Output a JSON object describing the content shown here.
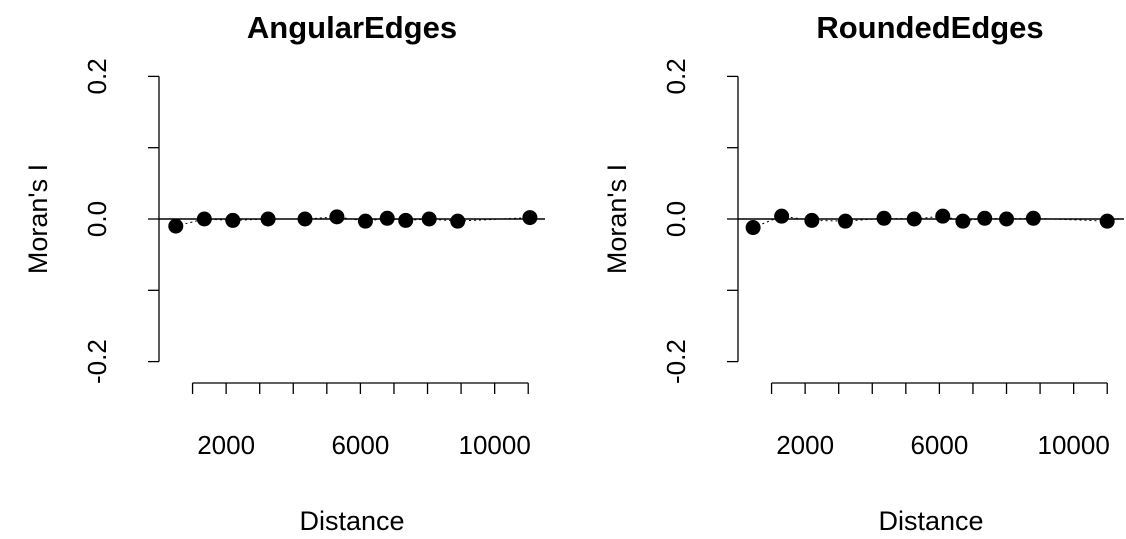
{
  "chart_data": [
    {
      "type": "scatter",
      "title": "AngularEdges",
      "xlabel": "Distance",
      "ylabel": "Moran's I",
      "xlim": [
        0,
        11500
      ],
      "ylim": [
        -0.23,
        0.23
      ],
      "xticks": [
        1000,
        2000,
        3000,
        4000,
        5000,
        6000,
        7000,
        8000,
        9000,
        10000,
        11000
      ],
      "xtick_labels": [
        "2000",
        "6000",
        "10000"
      ],
      "xtick_label_values": [
        2000,
        6000,
        10000
      ],
      "yticks": [
        -0.2,
        -0.1,
        0.0,
        0.1,
        0.2
      ],
      "ytick_labels": [
        "-0.2",
        "0.0",
        "0.2"
      ],
      "ytick_label_values": [
        -0.2,
        0.0,
        0.2
      ],
      "reference_line": 0,
      "grid": false,
      "series": [
        {
          "x": [
            500,
            1350,
            2200,
            3250,
            4350,
            5300,
            6150,
            6800,
            7350,
            8050,
            8900,
            11050
          ],
          "y": [
            -0.01,
            0.0,
            -0.002,
            0.0,
            0.0,
            0.003,
            -0.003,
            0.001,
            -0.002,
            0.0,
            -0.003,
            0.002
          ]
        }
      ]
    },
    {
      "type": "scatter",
      "title": "RoundedEdges",
      "xlabel": "Distance",
      "ylabel": "Moran's I",
      "xlim": [
        0,
        11500
      ],
      "ylim": [
        -0.23,
        0.23
      ],
      "xticks": [
        1000,
        2000,
        3000,
        4000,
        5000,
        6000,
        7000,
        8000,
        9000,
        10000,
        11000
      ],
      "xtick_labels": [
        "2000",
        "6000",
        "10000"
      ],
      "xtick_label_values": [
        2000,
        6000,
        10000
      ],
      "yticks": [
        -0.2,
        -0.1,
        0.0,
        0.1,
        0.2
      ],
      "ytick_labels": [
        "-0.2",
        "0.0",
        "0.2"
      ],
      "ytick_label_values": [
        -0.2,
        0.0,
        0.2
      ],
      "reference_line": 0,
      "grid": false,
      "series": [
        {
          "x": [
            450,
            1300,
            2200,
            3200,
            4350,
            5250,
            6100,
            6700,
            7350,
            8000,
            8800,
            11000
          ],
          "y": [
            -0.012,
            0.004,
            -0.002,
            -0.003,
            0.001,
            0.0,
            0.004,
            -0.003,
            0.001,
            0.0,
            0.001,
            -0.003
          ]
        }
      ]
    }
  ]
}
